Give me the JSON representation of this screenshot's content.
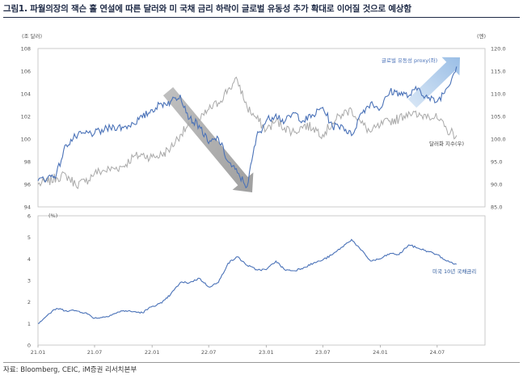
{
  "title": "그림1.  파월의장의 잭슨 홀 연설에 따른 달러와 미 국채 금리 하락이 글로벌 유동성 추가 확대로 이어질 것으로 예상함",
  "source": "자료: Bloomberg, CEIC, iM증권 리서치본부",
  "colors": {
    "dollar": "#a9a9a9",
    "liquidity": "#4a72b8",
    "yield": "#4a72b8",
    "arrow_down": "#9c9c9c",
    "arrow_up": "#a9c6e6",
    "title": "#1e2a46"
  },
  "chart_data": [
    {
      "type": "line",
      "position": "top",
      "left_unit": "(조 달러)",
      "right_unit": "(엔)",
      "left_ylim": [
        94,
        108
      ],
      "left_ticks": [
        "94",
        "96",
        "98",
        "100",
        "102",
        "104",
        "106",
        "108"
      ],
      "right_ylim": [
        85,
        120
      ],
      "right_ticks": [
        "85.0",
        "90.0",
        "95.0",
        "100.0",
        "105.0",
        "110.0",
        "115.0",
        "120.0"
      ],
      "x_ticks": [
        "21.01",
        "21.07",
        "22.01",
        "22.07",
        "23.01",
        "23.07",
        "24.01",
        "24.07"
      ],
      "annotations": {
        "liquidity": "글로벌 유동성 proxy(좌)",
        "dollar": "달러화 지수(우)"
      },
      "series": [
        {
          "name": "글로벌 유동성 proxy(좌)",
          "axis": "left",
          "x": [
            "2021-01-01",
            "2021-02-01",
            "2021-03-01",
            "2021-04-01",
            "2021-05-01",
            "2021-06-01",
            "2021-07-01",
            "2021-08-01",
            "2021-09-01",
            "2021-10-01",
            "2021-11-01",
            "2021-12-01",
            "2022-01-01",
            "2022-02-01",
            "2022-03-01",
            "2022-04-01",
            "2022-05-01",
            "2022-06-01",
            "2022-07-01",
            "2022-08-01",
            "2022-09-01",
            "2022-10-01",
            "2022-11-01",
            "2022-12-01",
            "2023-01-01",
            "2023-02-01",
            "2023-03-01",
            "2023-04-01",
            "2023-05-01",
            "2023-06-01",
            "2023-07-01",
            "2023-08-01",
            "2023-09-01",
            "2023-10-01",
            "2023-11-01",
            "2023-12-01",
            "2024-01-01",
            "2024-02-01",
            "2024-03-01",
            "2024-04-01",
            "2024-05-01",
            "2024-06-01",
            "2024-07-01",
            "2024-08-01",
            "2024-09-01"
          ],
          "values": [
            96.3,
            96.6,
            96.9,
            99.5,
            100.2,
            100.5,
            100.5,
            100.8,
            101.1,
            101.0,
            101.4,
            101.9,
            102.6,
            103.1,
            103.3,
            103.9,
            101.8,
            101.2,
            99.6,
            100.1,
            98.0,
            97.0,
            95.8,
            100.2,
            101.6,
            102.2,
            101.5,
            102.3,
            101.6,
            102.1,
            102.8,
            101.1,
            101.2,
            100.3,
            102.3,
            103.2,
            102.7,
            104.2,
            104.1,
            103.8,
            104.5,
            103.6,
            103.3,
            104.5,
            106.4
          ]
        },
        {
          "name": "달러화 지수(우)",
          "axis": "right",
          "x": [
            "2021-01-01",
            "2021-02-01",
            "2021-03-01",
            "2021-04-01",
            "2021-05-01",
            "2021-06-01",
            "2021-07-01",
            "2021-08-01",
            "2021-09-01",
            "2021-10-01",
            "2021-11-01",
            "2021-12-01",
            "2022-01-01",
            "2022-02-01",
            "2022-03-01",
            "2022-04-01",
            "2022-05-01",
            "2022-06-01",
            "2022-07-01",
            "2022-08-01",
            "2022-09-01",
            "2022-10-01",
            "2022-11-01",
            "2022-12-01",
            "2023-01-01",
            "2023-02-01",
            "2023-03-01",
            "2023-04-01",
            "2023-05-01",
            "2023-06-01",
            "2023-07-01",
            "2023-08-01",
            "2023-09-01",
            "2023-10-01",
            "2023-11-01",
            "2023-12-01",
            "2024-01-01",
            "2024-02-01",
            "2024-03-01",
            "2024-04-01",
            "2024-05-01",
            "2024-06-01",
            "2024-07-01",
            "2024-08-01",
            "2024-09-01"
          ],
          "values": [
            90.0,
            90.5,
            91.5,
            92.0,
            90.0,
            90.5,
            92.5,
            93.0,
            93.5,
            94.0,
            96.0,
            96.5,
            96.0,
            96.5,
            98.0,
            101.0,
            103.0,
            104.0,
            106.5,
            108.0,
            111.0,
            113.0,
            107.0,
            104.5,
            102.0,
            104.0,
            102.5,
            101.5,
            103.0,
            102.5,
            101.0,
            103.5,
            105.5,
            106.5,
            103.5,
            101.5,
            103.0,
            104.0,
            104.5,
            106.0,
            105.0,
            105.5,
            104.5,
            102.0,
            100.8
          ]
        }
      ]
    },
    {
      "type": "line",
      "position": "bottom",
      "unit": "(%)",
      "ylim": [
        0,
        6
      ],
      "y_ticks": [
        "0",
        "1",
        "2",
        "3",
        "4",
        "5",
        "6"
      ],
      "x_ticks": [
        "21.01",
        "21.07",
        "22.01",
        "22.07",
        "23.01",
        "23.07",
        "24.01",
        "24.07"
      ],
      "annotations": {
        "yield": "미국 10년 국채금리"
      },
      "series": [
        {
          "name": "미국 10년 국채금리",
          "x": [
            "2021-01-01",
            "2021-02-01",
            "2021-03-01",
            "2021-04-01",
            "2021-05-01",
            "2021-06-01",
            "2021-07-01",
            "2021-08-01",
            "2021-09-01",
            "2021-10-01",
            "2021-11-01",
            "2021-12-01",
            "2022-01-01",
            "2022-02-01",
            "2022-03-01",
            "2022-04-01",
            "2022-05-01",
            "2022-06-01",
            "2022-07-01",
            "2022-08-01",
            "2022-09-01",
            "2022-10-01",
            "2022-11-01",
            "2022-12-01",
            "2023-01-01",
            "2023-02-01",
            "2023-03-01",
            "2023-04-01",
            "2023-05-01",
            "2023-06-01",
            "2023-07-01",
            "2023-08-01",
            "2023-09-01",
            "2023-10-01",
            "2023-11-01",
            "2023-12-01",
            "2024-01-01",
            "2024-02-01",
            "2024-03-01",
            "2024-04-01",
            "2024-05-01",
            "2024-06-01",
            "2024-07-01",
            "2024-08-01",
            "2024-09-01"
          ],
          "values": [
            1.0,
            1.4,
            1.7,
            1.6,
            1.6,
            1.5,
            1.25,
            1.3,
            1.45,
            1.6,
            1.55,
            1.5,
            1.8,
            1.95,
            2.35,
            2.9,
            2.9,
            3.1,
            2.7,
            2.9,
            3.8,
            4.1,
            3.7,
            3.5,
            3.5,
            3.9,
            3.5,
            3.45,
            3.6,
            3.8,
            3.95,
            4.2,
            4.55,
            4.9,
            4.4,
            3.9,
            4.0,
            4.25,
            4.2,
            4.65,
            4.5,
            4.35,
            4.2,
            3.9,
            3.75
          ]
        }
      ]
    }
  ]
}
